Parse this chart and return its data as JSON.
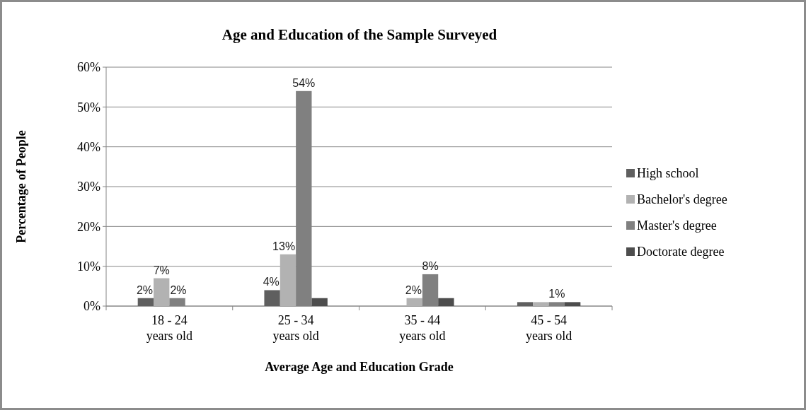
{
  "chart_data": {
    "type": "bar",
    "title": "Age and Education of the Sample Surveyed",
    "xlabel": "Average Age and Education Grade",
    "ylabel": "Percentage of People",
    "categories": [
      "18 - 24\nyears old",
      "25 - 34\nyears old",
      "35 - 44\nyears old",
      "45 - 54\nyears old"
    ],
    "series": [
      {
        "name": "High school",
        "color": "#5f5f5f",
        "values": [
          2,
          4,
          0,
          1
        ],
        "value_labels": [
          "2%",
          "4%",
          null,
          null
        ]
      },
      {
        "name": "Bachelor's degree",
        "color": "#b2b2b2",
        "values": [
          7,
          13,
          2,
          1
        ],
        "value_labels": [
          "7%",
          "13%",
          "2%",
          null
        ]
      },
      {
        "name": "Master's degree",
        "color": "#808080",
        "values": [
          2,
          54,
          8,
          1
        ],
        "value_labels": [
          "2%",
          "54%",
          "8%",
          "1%"
        ]
      },
      {
        "name": "Doctorate degree",
        "color": "#4d4d4d",
        "values": [
          0,
          2,
          2,
          1
        ],
        "value_labels": [
          null,
          null,
          null,
          null
        ]
      }
    ],
    "ylim": [
      0,
      60
    ],
    "yticks": [
      {
        "value": 0,
        "label": "0%"
      },
      {
        "value": 10,
        "label": "10%"
      },
      {
        "value": 20,
        "label": "20%"
      },
      {
        "value": 30,
        "label": "30%"
      },
      {
        "value": 40,
        "label": "40%"
      },
      {
        "value": 50,
        "label": "50%"
      },
      {
        "value": 60,
        "label": "60%"
      }
    ],
    "grid": "y",
    "legend": "right"
  }
}
